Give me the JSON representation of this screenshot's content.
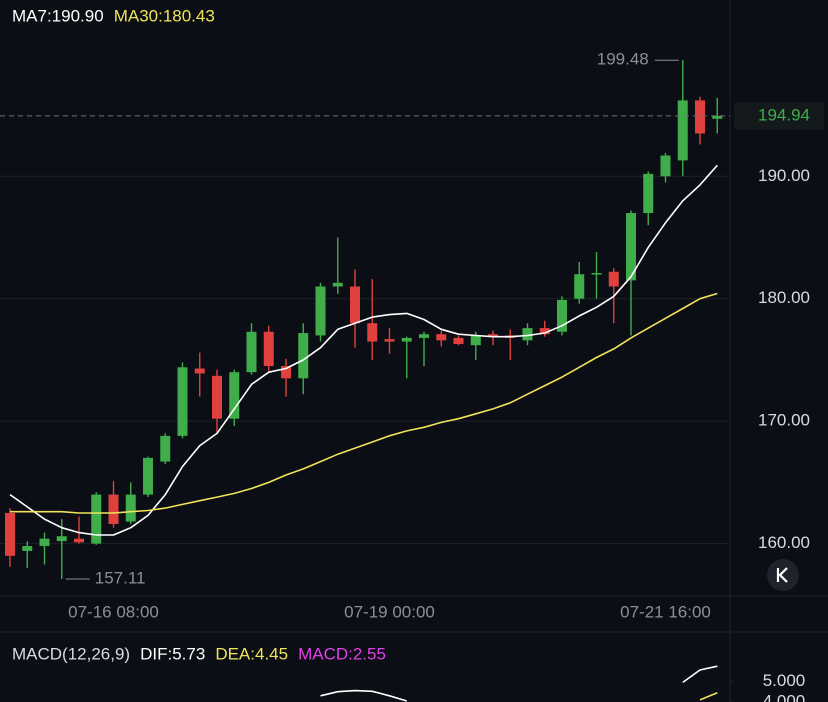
{
  "chart_data": [
    {
      "type": "candlestick",
      "legend": [
        {
          "text": "MA7:190.90",
          "color": "#ffffff"
        },
        {
          "text": "MA30:180.43",
          "color": "#f0e35a"
        }
      ],
      "categories": [
        null,
        null,
        null,
        null,
        null,
        null,
        "07-16 08:00",
        null,
        null,
        null,
        null,
        null,
        null,
        null,
        null,
        null,
        null,
        null,
        null,
        null,
        null,
        null,
        "07-19 00:00",
        null,
        null,
        null,
        null,
        null,
        null,
        null,
        null,
        null,
        null,
        null,
        null,
        null,
        null,
        null,
        "07-21 16:00",
        null,
        null,
        null
      ],
      "open": [
        162.5,
        159.4,
        159.8,
        160.2,
        160.4,
        160.0,
        164.0,
        161.8,
        164.0,
        166.7,
        168.8,
        174.3,
        173.7,
        170.2,
        174.0,
        177.3,
        174.5,
        173.5,
        177.0,
        181.0,
        181.0,
        178.0,
        176.7,
        176.5,
        176.8,
        177.1,
        176.8,
        176.2,
        177.1,
        177.0,
        176.6,
        177.6,
        177.3,
        180.0,
        182.0,
        182.2,
        181.5,
        187.0,
        190.0,
        191.3,
        196.2,
        194.7
      ],
      "high": [
        162.9,
        160.2,
        160.9,
        162.0,
        162.2,
        164.2,
        165.1,
        165.0,
        167.1,
        169.0,
        174.8,
        175.6,
        174.2,
        174.2,
        178.0,
        177.8,
        175.1,
        178.0,
        181.3,
        185.0,
        182.4,
        181.6,
        177.6,
        176.9,
        177.3,
        177.4,
        177.0,
        177.3,
        177.4,
        177.5,
        178.0,
        178.2,
        180.2,
        183.0,
        183.8,
        182.5,
        187.2,
        190.4,
        191.9,
        199.48,
        196.5,
        196.4
      ],
      "low": [
        158.1,
        158.0,
        158.3,
        157.11,
        160.0,
        159.9,
        161.3,
        161.6,
        163.8,
        166.5,
        168.6,
        172.0,
        169.0,
        169.6,
        173.8,
        174.0,
        172.0,
        172.2,
        176.5,
        180.4,
        176.0,
        175.0,
        175.5,
        173.5,
        174.5,
        176.1,
        176.2,
        175.0,
        176.2,
        175.0,
        176.2,
        176.9,
        177.0,
        179.6,
        180.0,
        178.0,
        177.0,
        186.0,
        189.5,
        190.0,
        192.6,
        193.5
      ],
      "close": [
        159.0,
        159.8,
        160.4,
        160.6,
        160.1,
        164.0,
        161.6,
        164.0,
        167.0,
        168.8,
        174.4,
        173.9,
        170.2,
        174.0,
        177.3,
        174.5,
        173.5,
        177.2,
        181.0,
        181.3,
        178.0,
        176.5,
        176.5,
        176.8,
        177.1,
        176.6,
        176.3,
        177.0,
        176.9,
        176.8,
        177.6,
        177.1,
        179.9,
        182.0,
        182.1,
        181.0,
        187.0,
        190.2,
        191.7,
        196.2,
        193.5,
        194.94
      ],
      "up_color": "#3fae4a",
      "down_color": "#e0413f",
      "series": [
        {
          "name": "MA7",
          "color": "#ffffff",
          "values": [
            164.0,
            163.0,
            162.0,
            161.3,
            160.9,
            160.7,
            160.7,
            161.3,
            162.3,
            164.0,
            166.3,
            168.0,
            169.0,
            171.0,
            173.0,
            174.0,
            174.3,
            175.0,
            176.0,
            177.5,
            178.0,
            178.5,
            178.7,
            178.8,
            178.3,
            177.5,
            177.1,
            177.0,
            176.9,
            176.9,
            177.0,
            177.2,
            177.8,
            178.6,
            179.3,
            180.2,
            181.8,
            184.2,
            186.2,
            188.0,
            189.3,
            190.9
          ]
        },
        {
          "name": "MA30",
          "color": "#f0e35a",
          "values": [
            162.6,
            162.6,
            162.6,
            162.6,
            162.5,
            162.5,
            162.5,
            162.6,
            162.7,
            162.9,
            163.2,
            163.5,
            163.8,
            164.1,
            164.5,
            165.0,
            165.6,
            166.1,
            166.7,
            167.3,
            167.8,
            168.3,
            168.8,
            169.2,
            169.5,
            169.9,
            170.2,
            170.6,
            171.0,
            171.5,
            172.2,
            172.9,
            173.6,
            174.4,
            175.2,
            175.9,
            176.8,
            177.6,
            178.4,
            179.2,
            180.0,
            180.43
          ]
        }
      ],
      "ylim": [
        155.8,
        204.4
      ],
      "yticks": [
        {
          "value": 160,
          "label": "160.00"
        },
        {
          "value": 170,
          "label": "170.00"
        },
        {
          "value": 180,
          "label": "180.00"
        },
        {
          "value": 190,
          "label": "190.00"
        }
      ],
      "grid": true
    },
    {
      "type": "line",
      "legend": [
        {
          "text": "MACD(12,26,9)",
          "color": "#d8dbe2"
        },
        {
          "text": "DIF:5.73",
          "color": "#ffffff"
        },
        {
          "text": "DEA:4.45",
          "color": "#f0e35a"
        },
        {
          "text": "MACD:2.55",
          "color": "#e040e8"
        }
      ],
      "series": [
        {
          "name": "DIF",
          "color": "#ffffff",
          "values": [
            null,
            null,
            null,
            null,
            null,
            null,
            null,
            null,
            null,
            null,
            null,
            null,
            null,
            null,
            null,
            null,
            null,
            null,
            4.3,
            4.5,
            4.55,
            4.52,
            4.3,
            4.05,
            null,
            null,
            null,
            null,
            null,
            null,
            null,
            null,
            null,
            null,
            null,
            null,
            null,
            null,
            null,
            4.95,
            5.55,
            5.73
          ]
        },
        {
          "name": "DEA",
          "color": "#f0e35a",
          "values": [
            null,
            null,
            null,
            null,
            null,
            null,
            null,
            null,
            null,
            null,
            null,
            null,
            null,
            null,
            null,
            null,
            null,
            null,
            null,
            null,
            null,
            null,
            null,
            null,
            null,
            null,
            null,
            null,
            null,
            null,
            null,
            null,
            null,
            null,
            null,
            null,
            null,
            null,
            null,
            null,
            4.1,
            4.45
          ]
        }
      ],
      "ylim": [
        4,
        7
      ],
      "yticks": [
        {
          "value": 4,
          "label": "4.000"
        },
        {
          "value": 5,
          "label": "5.000"
        }
      ]
    }
  ]
}
